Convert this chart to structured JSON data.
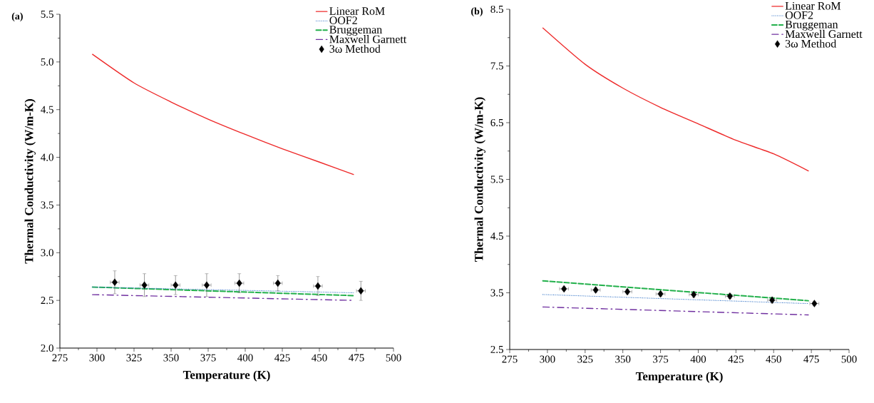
{
  "chart_data": [
    {
      "type": "line",
      "title": "(a)",
      "xlabel": "Temperature (K)",
      "ylabel": "Thermal Conductivity (W/m-K)",
      "xlim": [
        275,
        500
      ],
      "xticks": [
        275,
        300,
        325,
        350,
        375,
        400,
        425,
        450,
        475,
        500
      ],
      "ylim": [
        2.0,
        5.5
      ],
      "yticks": [
        {
          "value": 2.0,
          "label": "2.0"
        },
        {
          "value": 2.5,
          "label": "2.5"
        },
        {
          "value": 3.0,
          "label": "3.0"
        },
        {
          "value": 3.5,
          "label": "3.5"
        },
        {
          "value": 4.0,
          "label": "4.0"
        },
        {
          "value": 4.5,
          "label": "4.5"
        },
        {
          "value": 5.0,
          "label": "5.0"
        },
        {
          "value": 5.5,
          "label": "5.5"
        }
      ],
      "legend": "top right",
      "grid": false,
      "series": [
        {
          "name": "Linear RoM",
          "line_style": "solid",
          "color": "#ee2a2a",
          "x": [
            297,
            325,
            350,
            375,
            400,
            425,
            450,
            473
          ],
          "values": [
            5.08,
            4.78,
            4.58,
            4.4,
            4.24,
            4.09,
            3.95,
            3.82
          ]
        },
        {
          "name": "OOF2",
          "line_style": "dotted",
          "color": "#3a78c8",
          "x": [
            297,
            473
          ],
          "values": [
            2.64,
            2.58
          ]
        },
        {
          "name": "Bruggeman",
          "line_style": "dashed",
          "color": "#22b04b",
          "x": [
            297,
            473
          ],
          "values": [
            2.64,
            2.55
          ]
        },
        {
          "name": "Maxwell Garnett",
          "line_style": "dashdot",
          "color": "#7030a0",
          "x": [
            297,
            473
          ],
          "values": [
            2.56,
            2.5
          ]
        },
        {
          "name": "3ω Method",
          "type": "scatter",
          "marker": "diamond",
          "color": "#000000",
          "x": [
            312,
            332,
            353,
            374,
            396,
            422,
            449,
            478
          ],
          "values": [
            2.69,
            2.66,
            2.66,
            2.66,
            2.68,
            2.68,
            2.65,
            2.6
          ],
          "errors": [
            0.12,
            0.12,
            0.1,
            0.12,
            0.1,
            0.08,
            0.1,
            0.1
          ],
          "xerrors": [
            3,
            3,
            3,
            3,
            3,
            3,
            3,
            3
          ]
        }
      ]
    },
    {
      "type": "line",
      "title": "(b)",
      "xlabel": "Temperature (K)",
      "ylabel": "Thermal Conductivity (W/m-K)",
      "xlim": [
        275,
        500
      ],
      "xticks": [
        275,
        300,
        325,
        350,
        375,
        400,
        425,
        450,
        475,
        500
      ],
      "ylim": [
        2.5,
        8.5
      ],
      "yticks": [
        2.5,
        3.5,
        4.5,
        5.5,
        6.5,
        7.5,
        8.5
      ],
      "legend": "top right",
      "grid": false,
      "series": [
        {
          "name": "Linear RoM",
          "line_style": "solid",
          "color": "#ee2a2a",
          "x": [
            297,
            325,
            350,
            375,
            400,
            425,
            450,
            473
          ],
          "values": [
            8.17,
            7.53,
            7.11,
            6.77,
            6.48,
            6.19,
            5.95,
            5.65
          ]
        },
        {
          "name": "OOF2",
          "line_style": "dotted",
          "color": "#3a78c8",
          "x": [
            297,
            473
          ],
          "values": [
            3.47,
            3.31
          ]
        },
        {
          "name": "Bruggeman",
          "line_style": "dashed",
          "color": "#22b04b",
          "x": [
            297,
            473
          ],
          "values": [
            3.71,
            3.36
          ]
        },
        {
          "name": "Maxwell Garnett",
          "line_style": "dashdot",
          "color": "#7030a0",
          "x": [
            297,
            473
          ],
          "values": [
            3.25,
            3.11
          ]
        },
        {
          "name": "3ω Method",
          "type": "scatter",
          "marker": "diamond",
          "color": "#000000",
          "x": [
            311,
            332,
            353,
            375,
            397,
            421,
            449,
            477
          ],
          "values": [
            3.57,
            3.55,
            3.52,
            3.48,
            3.47,
            3.44,
            3.37,
            3.31
          ],
          "errors": [
            0.03,
            0.04,
            0.04,
            0.04,
            0.05,
            0.04,
            0.05,
            0.03
          ],
          "xerrors": [
            3,
            3,
            3,
            3,
            3,
            3,
            3,
            3
          ]
        }
      ]
    }
  ]
}
